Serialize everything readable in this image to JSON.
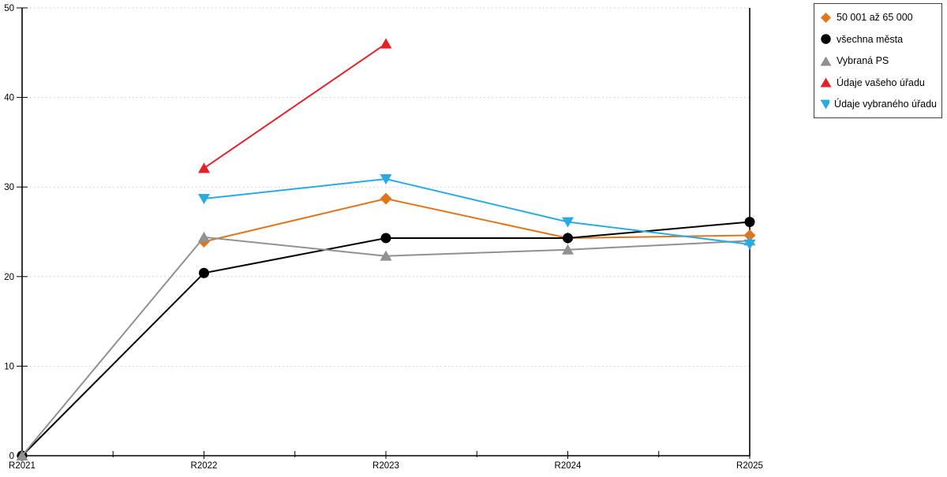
{
  "chart_data": {
    "type": "line",
    "title": "",
    "xlabel": "",
    "ylabel": "",
    "categories": [
      "R2021",
      "R2022",
      "R2023",
      "R2024",
      "R2025"
    ],
    "y_ticks": [
      0,
      10,
      20,
      30,
      40,
      50
    ],
    "ylim": [
      0,
      50
    ],
    "grid": "horizontal-dotted",
    "grid_color": "#c9c9c9",
    "axis_color": "#000000",
    "legend_position": "top-right-outside",
    "series": [
      {
        "name": "50 001 až 65 000",
        "color": "#e1751c",
        "marker": "diamond",
        "values": [
          null,
          23.9,
          28.7,
          24.3,
          24.6
        ]
      },
      {
        "name": "všechna města",
        "color": "#000000",
        "marker": "circle",
        "values": [
          0,
          20.4,
          24.3,
          24.3,
          26.1
        ]
      },
      {
        "name": "Vybraná PS",
        "color": "#919191",
        "marker": "triangle-up",
        "values": [
          0,
          24.4,
          22.3,
          23.0,
          24.0
        ]
      },
      {
        "name": "Údaje vašeho úřadu",
        "color": "#e6212a",
        "marker": "triangle-up",
        "values": [
          null,
          32.1,
          46.0,
          null,
          null
        ]
      },
      {
        "name": "Údaje vybraného úřadu",
        "color": "#29abe2",
        "marker": "triangle-down",
        "values": [
          null,
          28.7,
          30.9,
          26.1,
          23.6
        ]
      }
    ]
  }
}
